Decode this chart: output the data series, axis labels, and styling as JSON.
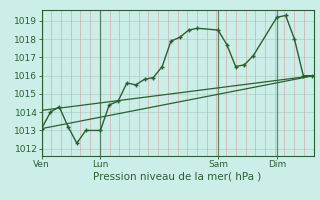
{
  "bg_color": "#cceee8",
  "grid_color_major": "#b0d8d0",
  "grid_color_minor": "#c0e0da",
  "line_color": "#2a6030",
  "xlabel": "Pression niveau de la mer( hPa )",
  "yticks": [
    1012,
    1013,
    1014,
    1015,
    1016,
    1017,
    1018,
    1019
  ],
  "xtick_labels": [
    "Ven",
    "Lun",
    "Sam",
    "Dim"
  ],
  "xtick_positions": [
    0,
    40,
    120,
    160
  ],
  "xlim": [
    0,
    185
  ],
  "ylim": [
    1011.6,
    1019.6
  ],
  "series1_x": [
    0,
    6,
    12,
    18,
    24,
    30,
    40,
    46,
    52,
    58,
    64,
    70,
    76,
    82,
    88,
    94,
    100,
    106,
    120,
    126,
    132,
    138,
    144,
    160,
    166,
    172,
    178,
    184
  ],
  "series1_y": [
    1013.1,
    1014.0,
    1014.3,
    1013.2,
    1012.3,
    1013.0,
    1013.0,
    1014.4,
    1014.6,
    1015.6,
    1015.5,
    1015.8,
    1015.9,
    1016.5,
    1017.9,
    1018.1,
    1018.5,
    1018.6,
    1018.5,
    1017.7,
    1016.5,
    1016.6,
    1017.1,
    1019.2,
    1019.3,
    1018.0,
    1016.0,
    1016.0
  ],
  "series2_x": [
    0,
    185
  ],
  "series2_y": [
    1013.1,
    1016.0
  ],
  "series3_x": [
    0,
    185
  ],
  "series3_y": [
    1014.1,
    1016.0
  ],
  "vlines_x": [
    0,
    40,
    120,
    160
  ],
  "tick_fontsize": 6.5,
  "label_fontsize": 7.5
}
